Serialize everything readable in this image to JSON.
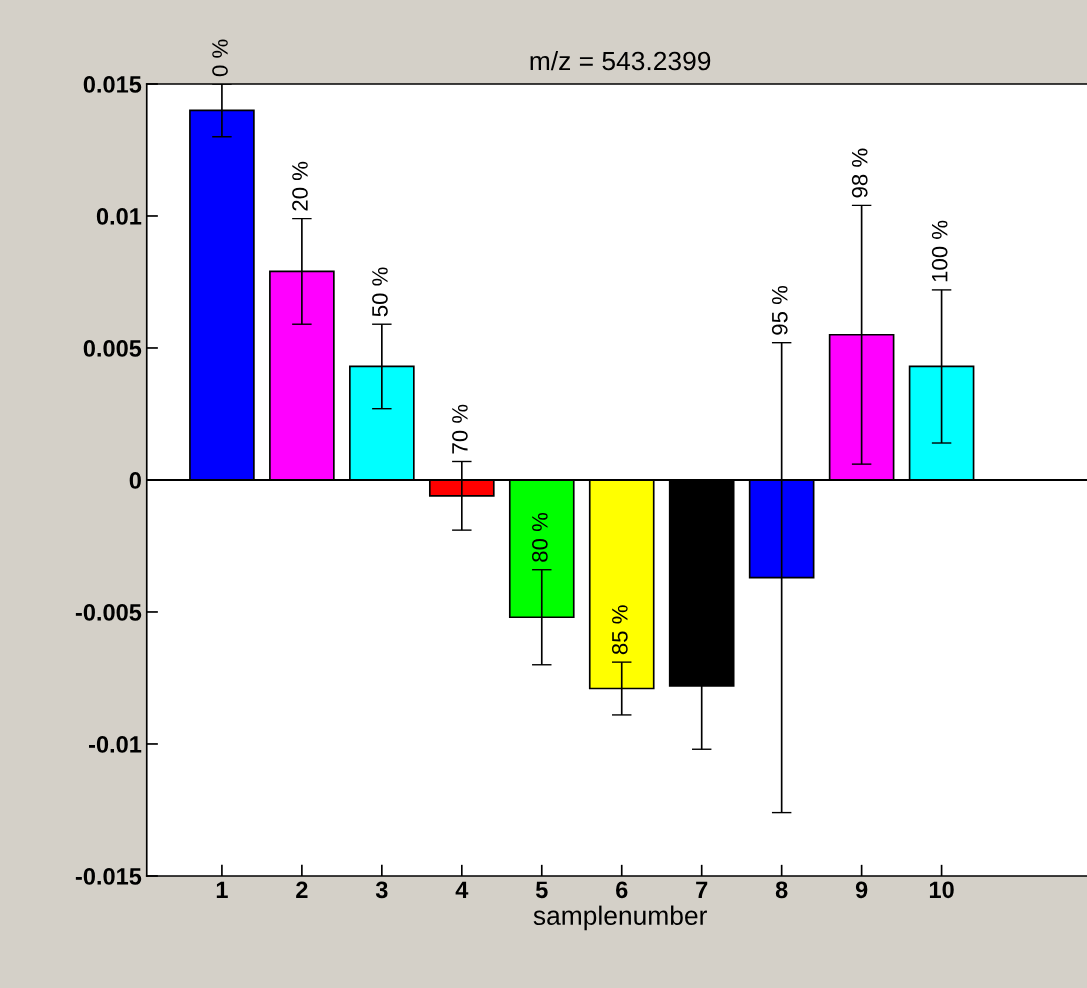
{
  "chart_data": {
    "type": "bar",
    "title": "m/z = 543.2399",
    "xlabel": "samplenumber",
    "x": [
      1,
      2,
      3,
      4,
      5,
      6,
      7,
      8,
      9,
      10
    ],
    "values": [
      0.014,
      0.0079,
      0.0043,
      -0.0006,
      -0.0052,
      -0.0079,
      -0.0078,
      -0.0037,
      0.0055,
      0.0043
    ],
    "errors": [
      0.001,
      0.002,
      0.0016,
      0.0013,
      0.0018,
      0.001,
      0.0024,
      0.0089,
      0.0049,
      0.0029
    ],
    "colors": [
      "#0000ff",
      "#ff00ff",
      "#00ffff",
      "#ff0000",
      "#00ff00",
      "#ffff00",
      "#000000",
      "#0000ff",
      "#ff00ff",
      "#00ffff"
    ],
    "annotations": [
      {
        "text": "0 %",
        "x": 1,
        "y": 0.015
      },
      {
        "text": "20 %",
        "x": 2,
        "y": 0.0099
      },
      {
        "text": "50 %",
        "x": 3,
        "y": 0.0059
      },
      {
        "text": "70 %",
        "x": 4,
        "y": 0.0007
      },
      {
        "text": "80 %",
        "x": 5,
        "y": -0.0034
      },
      {
        "text": "85 %",
        "x": 6,
        "y": -0.0069
      },
      {
        "text": "95 %",
        "x": 8,
        "y": 0.0052
      },
      {
        "text": "98 %",
        "x": 9,
        "y": 0.0104
      },
      {
        "text": "100 %",
        "x": 10,
        "y": 0.0072
      }
    ],
    "xlim": [
      0.06,
      11.9
    ],
    "xticks": [
      1,
      2,
      3,
      4,
      5,
      6,
      7,
      8,
      9,
      10
    ],
    "ylim": [
      -0.015,
      0.015
    ],
    "yticks": [
      -0.015,
      -0.01,
      -0.005,
      0,
      0.005,
      0.01,
      0.015
    ],
    "ref_lines": [
      {
        "axis": "y",
        "value": 0,
        "color": "#000000"
      }
    ],
    "grid": false,
    "legend": false
  }
}
